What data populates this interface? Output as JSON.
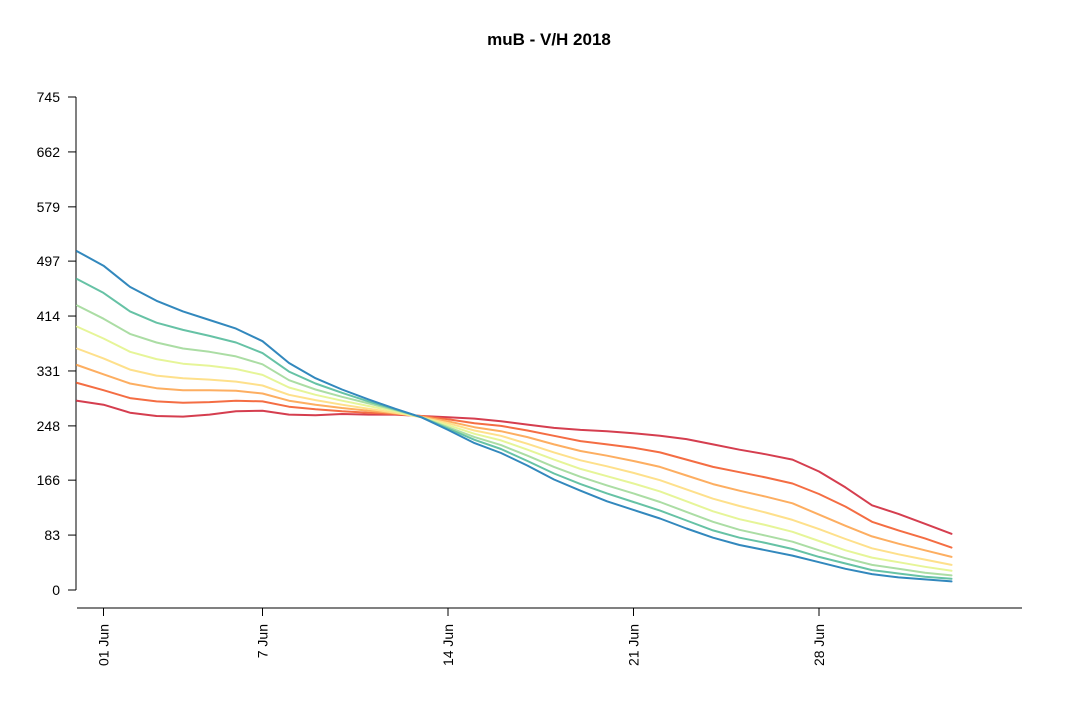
{
  "chart_data": {
    "type": "line",
    "title": "muB - V/H 2018",
    "xlabel": "",
    "ylabel": "",
    "y_ticks": [
      0,
      83,
      166,
      248,
      331,
      414,
      497,
      579,
      662,
      745
    ],
    "ylim": [
      0,
      745
    ],
    "x_ticks": [
      {
        "day": 1,
        "label": "01 Jun"
      },
      {
        "day": 7,
        "label": "7 Jun"
      },
      {
        "day": 14,
        "label": "14 Jun"
      },
      {
        "day": 21,
        "label": "21 Jun"
      },
      {
        "day": 28,
        "label": "28 Jun"
      }
    ],
    "xlim": [
      0,
      36
    ],
    "grid": false,
    "series": [
      {
        "color": "#d53e4f",
        "points": [
          [
            0,
            286
          ],
          [
            1,
            280
          ],
          [
            2,
            268
          ],
          [
            3,
            263
          ],
          [
            4,
            262
          ],
          [
            5,
            265
          ],
          [
            6,
            270
          ],
          [
            7,
            271
          ],
          [
            8,
            265
          ],
          [
            9,
            264
          ],
          [
            10,
            266
          ],
          [
            11,
            265
          ],
          [
            12,
            265
          ],
          [
            13,
            263
          ],
          [
            14,
            261
          ],
          [
            15,
            259
          ],
          [
            16,
            255
          ],
          [
            17,
            250
          ],
          [
            18,
            245
          ],
          [
            19,
            242
          ],
          [
            20,
            240
          ],
          [
            21,
            237
          ],
          [
            22,
            233
          ],
          [
            23,
            228
          ],
          [
            24,
            220
          ],
          [
            25,
            212
          ],
          [
            26,
            205
          ],
          [
            27,
            197
          ],
          [
            28,
            179
          ],
          [
            29,
            155
          ],
          [
            30,
            128
          ],
          [
            31,
            115
          ],
          [
            32,
            100
          ],
          [
            33,
            85
          ]
        ]
      },
      {
        "color": "#f46d43",
        "points": [
          [
            0,
            313
          ],
          [
            1,
            302
          ],
          [
            2,
            290
          ],
          [
            3,
            285
          ],
          [
            4,
            283
          ],
          [
            5,
            284
          ],
          [
            6,
            286
          ],
          [
            7,
            285
          ],
          [
            8,
            277
          ],
          [
            9,
            273
          ],
          [
            10,
            270
          ],
          [
            11,
            268
          ],
          [
            12,
            266
          ],
          [
            13,
            263
          ],
          [
            14,
            258
          ],
          [
            15,
            252
          ],
          [
            16,
            248
          ],
          [
            17,
            241
          ],
          [
            18,
            233
          ],
          [
            19,
            225
          ],
          [
            20,
            220
          ],
          [
            21,
            215
          ],
          [
            22,
            208
          ],
          [
            23,
            197
          ],
          [
            24,
            186
          ],
          [
            25,
            178
          ],
          [
            26,
            170
          ],
          [
            27,
            161
          ],
          [
            28,
            145
          ],
          [
            29,
            126
          ],
          [
            30,
            103
          ],
          [
            31,
            90
          ],
          [
            32,
            78
          ],
          [
            33,
            64
          ]
        ]
      },
      {
        "color": "#fdae61",
        "points": [
          [
            0,
            340
          ],
          [
            1,
            326
          ],
          [
            2,
            312
          ],
          [
            3,
            305
          ],
          [
            4,
            302
          ],
          [
            5,
            302
          ],
          [
            6,
            301
          ],
          [
            7,
            297
          ],
          [
            8,
            286
          ],
          [
            9,
            280
          ],
          [
            10,
            275
          ],
          [
            11,
            271
          ],
          [
            12,
            267
          ],
          [
            13,
            262
          ],
          [
            14,
            255
          ],
          [
            15,
            246
          ],
          [
            16,
            240
          ],
          [
            17,
            231
          ],
          [
            18,
            220
          ],
          [
            19,
            210
          ],
          [
            20,
            203
          ],
          [
            21,
            195
          ],
          [
            22,
            186
          ],
          [
            23,
            173
          ],
          [
            24,
            160
          ],
          [
            25,
            150
          ],
          [
            26,
            141
          ],
          [
            27,
            131
          ],
          [
            28,
            114
          ],
          [
            29,
            97
          ],
          [
            30,
            81
          ],
          [
            31,
            70
          ],
          [
            32,
            60
          ],
          [
            33,
            50
          ]
        ]
      },
      {
        "color": "#fee08b",
        "points": [
          [
            0,
            365
          ],
          [
            1,
            350
          ],
          [
            2,
            333
          ],
          [
            3,
            324
          ],
          [
            4,
            320
          ],
          [
            5,
            318
          ],
          [
            6,
            315
          ],
          [
            7,
            309
          ],
          [
            8,
            295
          ],
          [
            9,
            287
          ],
          [
            10,
            280
          ],
          [
            11,
            274
          ],
          [
            12,
            268
          ],
          [
            13,
            261
          ],
          [
            14,
            252
          ],
          [
            15,
            241
          ],
          [
            16,
            233
          ],
          [
            17,
            221
          ],
          [
            18,
            208
          ],
          [
            19,
            196
          ],
          [
            20,
            187
          ],
          [
            21,
            177
          ],
          [
            22,
            166
          ],
          [
            23,
            152
          ],
          [
            24,
            138
          ],
          [
            25,
            127
          ],
          [
            26,
            117
          ],
          [
            27,
            106
          ],
          [
            28,
            92
          ],
          [
            29,
            77
          ],
          [
            30,
            63
          ],
          [
            31,
            54
          ],
          [
            32,
            46
          ],
          [
            33,
            38
          ]
        ]
      },
      {
        "color": "#e6f598",
        "points": [
          [
            0,
            398
          ],
          [
            1,
            380
          ],
          [
            2,
            360
          ],
          [
            3,
            349
          ],
          [
            4,
            342
          ],
          [
            5,
            339
          ],
          [
            6,
            334
          ],
          [
            7,
            325
          ],
          [
            8,
            306
          ],
          [
            9,
            295
          ],
          [
            10,
            286
          ],
          [
            11,
            278
          ],
          [
            12,
            270
          ],
          [
            13,
            261
          ],
          [
            14,
            249
          ],
          [
            15,
            236
          ],
          [
            16,
            226
          ],
          [
            17,
            212
          ],
          [
            18,
            197
          ],
          [
            19,
            183
          ],
          [
            20,
            172
          ],
          [
            21,
            161
          ],
          [
            22,
            149
          ],
          [
            23,
            134
          ],
          [
            24,
            119
          ],
          [
            25,
            107
          ],
          [
            26,
            98
          ],
          [
            27,
            88
          ],
          [
            28,
            74
          ],
          [
            29,
            60
          ],
          [
            30,
            49
          ],
          [
            31,
            42
          ],
          [
            32,
            35
          ],
          [
            33,
            29
          ]
        ]
      },
      {
        "color": "#abdda4",
        "points": [
          [
            0,
            430
          ],
          [
            1,
            410
          ],
          [
            2,
            387
          ],
          [
            3,
            374
          ],
          [
            4,
            365
          ],
          [
            5,
            360
          ],
          [
            6,
            353
          ],
          [
            7,
            341
          ],
          [
            8,
            317
          ],
          [
            9,
            303
          ],
          [
            10,
            292
          ],
          [
            11,
            282
          ],
          [
            12,
            272
          ],
          [
            13,
            261
          ],
          [
            14,
            246
          ],
          [
            15,
            231
          ],
          [
            16,
            219
          ],
          [
            17,
            203
          ],
          [
            18,
            186
          ],
          [
            19,
            171
          ],
          [
            20,
            158
          ],
          [
            21,
            146
          ],
          [
            22,
            133
          ],
          [
            23,
            118
          ],
          [
            24,
            103
          ],
          [
            25,
            91
          ],
          [
            26,
            82
          ],
          [
            27,
            73
          ],
          [
            28,
            60
          ],
          [
            29,
            48
          ],
          [
            30,
            38
          ],
          [
            31,
            32
          ],
          [
            32,
            26
          ],
          [
            33,
            22
          ]
        ]
      },
      {
        "color": "#66c2a5",
        "points": [
          [
            0,
            470
          ],
          [
            1,
            449
          ],
          [
            2,
            421
          ],
          [
            3,
            404
          ],
          [
            4,
            393
          ],
          [
            5,
            384
          ],
          [
            6,
            374
          ],
          [
            7,
            358
          ],
          [
            8,
            330
          ],
          [
            9,
            312
          ],
          [
            10,
            298
          ],
          [
            11,
            285
          ],
          [
            12,
            273
          ],
          [
            13,
            261
          ],
          [
            14,
            244
          ],
          [
            15,
            227
          ],
          [
            16,
            213
          ],
          [
            17,
            195
          ],
          [
            18,
            176
          ],
          [
            19,
            160
          ],
          [
            20,
            146
          ],
          [
            21,
            133
          ],
          [
            22,
            120
          ],
          [
            23,
            105
          ],
          [
            24,
            90
          ],
          [
            25,
            79
          ],
          [
            26,
            71
          ],
          [
            27,
            62
          ],
          [
            28,
            50
          ],
          [
            29,
            40
          ],
          [
            30,
            30
          ],
          [
            31,
            25
          ],
          [
            32,
            20
          ],
          [
            33,
            17
          ]
        ]
      },
      {
        "color": "#3288bd",
        "points": [
          [
            0,
            512
          ],
          [
            1,
            490
          ],
          [
            2,
            458
          ],
          [
            3,
            437
          ],
          [
            4,
            421
          ],
          [
            5,
            408
          ],
          [
            6,
            395
          ],
          [
            7,
            376
          ],
          [
            8,
            343
          ],
          [
            9,
            320
          ],
          [
            10,
            303
          ],
          [
            11,
            288
          ],
          [
            12,
            274
          ],
          [
            13,
            261
          ],
          [
            14,
            242
          ],
          [
            15,
            222
          ],
          [
            16,
            207
          ],
          [
            17,
            188
          ],
          [
            18,
            167
          ],
          [
            19,
            150
          ],
          [
            20,
            134
          ],
          [
            21,
            121
          ],
          [
            22,
            108
          ],
          [
            23,
            93
          ],
          [
            24,
            79
          ],
          [
            25,
            68
          ],
          [
            26,
            60
          ],
          [
            27,
            52
          ],
          [
            28,
            42
          ],
          [
            29,
            32
          ],
          [
            30,
            24
          ],
          [
            31,
            19
          ],
          [
            32,
            16
          ],
          [
            33,
            13
          ]
        ]
      }
    ]
  }
}
